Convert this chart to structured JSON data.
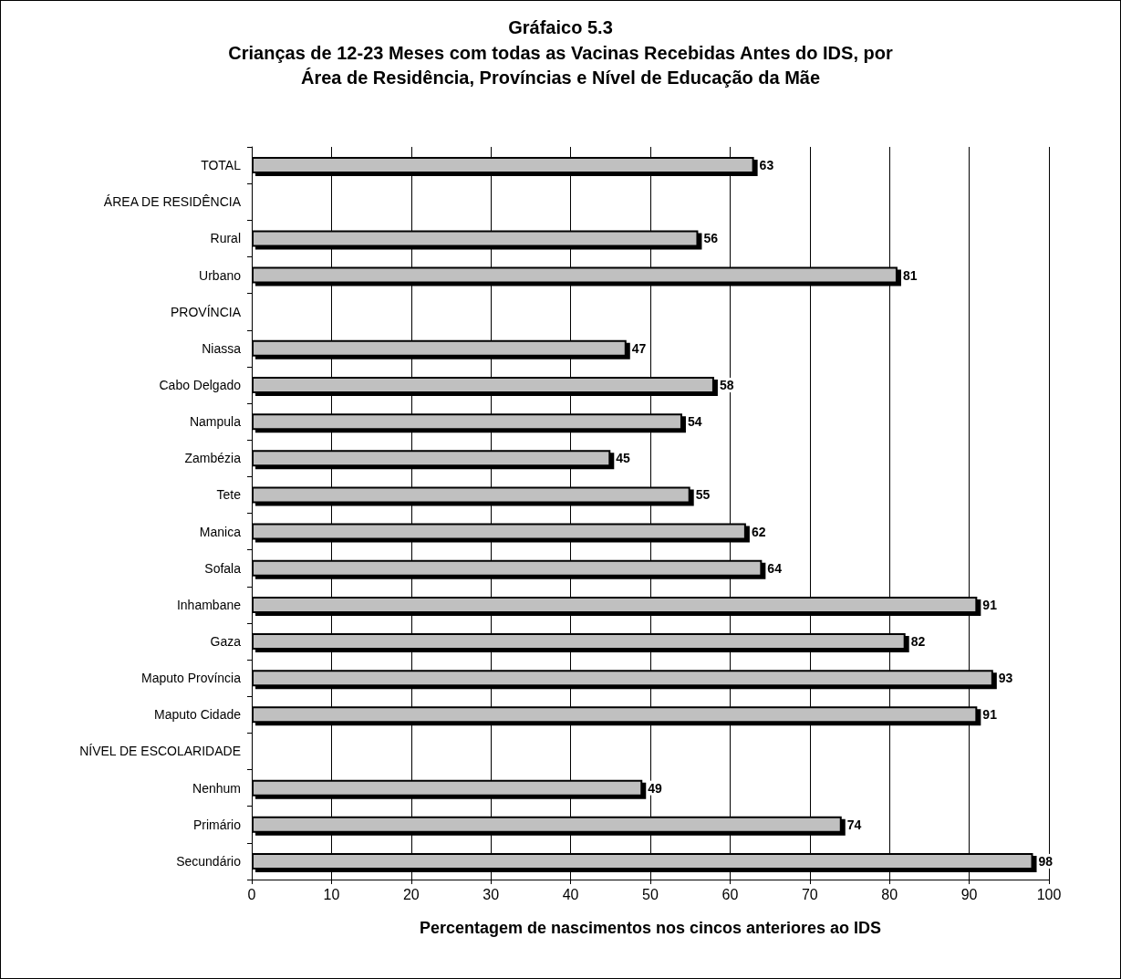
{
  "chart_data": {
    "type": "bar",
    "orientation": "horizontal",
    "title": "Gráfaico 5.3",
    "subtitle": "Crianças de 12-23 Meses com todas as Vacinas Recebidas Antes do IDS, por\nÁrea de Residência, Províncias e Nível de Educação da Mãe",
    "xlabel": "Percentagem de nascimentos nos cincos anteriores ao IDS",
    "categories": [
      "TOTAL",
      "ÁREA DE RESIDÊNCIA",
      "Rural",
      "Urbano",
      "PROVÍNCIA",
      "Niassa",
      "Cabo Delgado",
      "Nampula",
      "Zambézia",
      "Tete",
      "Manica",
      "Sofala",
      "Inhambane",
      "Gaza",
      "Maputo Província",
      "Maputo Cidade",
      "NÍVEL DE ESCOLARIDADE",
      "Nenhum",
      "Primário",
      "Secundário"
    ],
    "values": [
      63,
      null,
      56,
      81,
      null,
      47,
      58,
      54,
      45,
      55,
      62,
      64,
      91,
      82,
      93,
      91,
      null,
      49,
      74,
      98
    ],
    "color": "#c0c0c0",
    "xlim": [
      0,
      100
    ],
    "xticks": [
      0,
      10,
      20,
      30,
      40,
      50,
      60,
      70,
      80,
      90,
      100
    ],
    "grid": "x",
    "data_labels": true
  }
}
